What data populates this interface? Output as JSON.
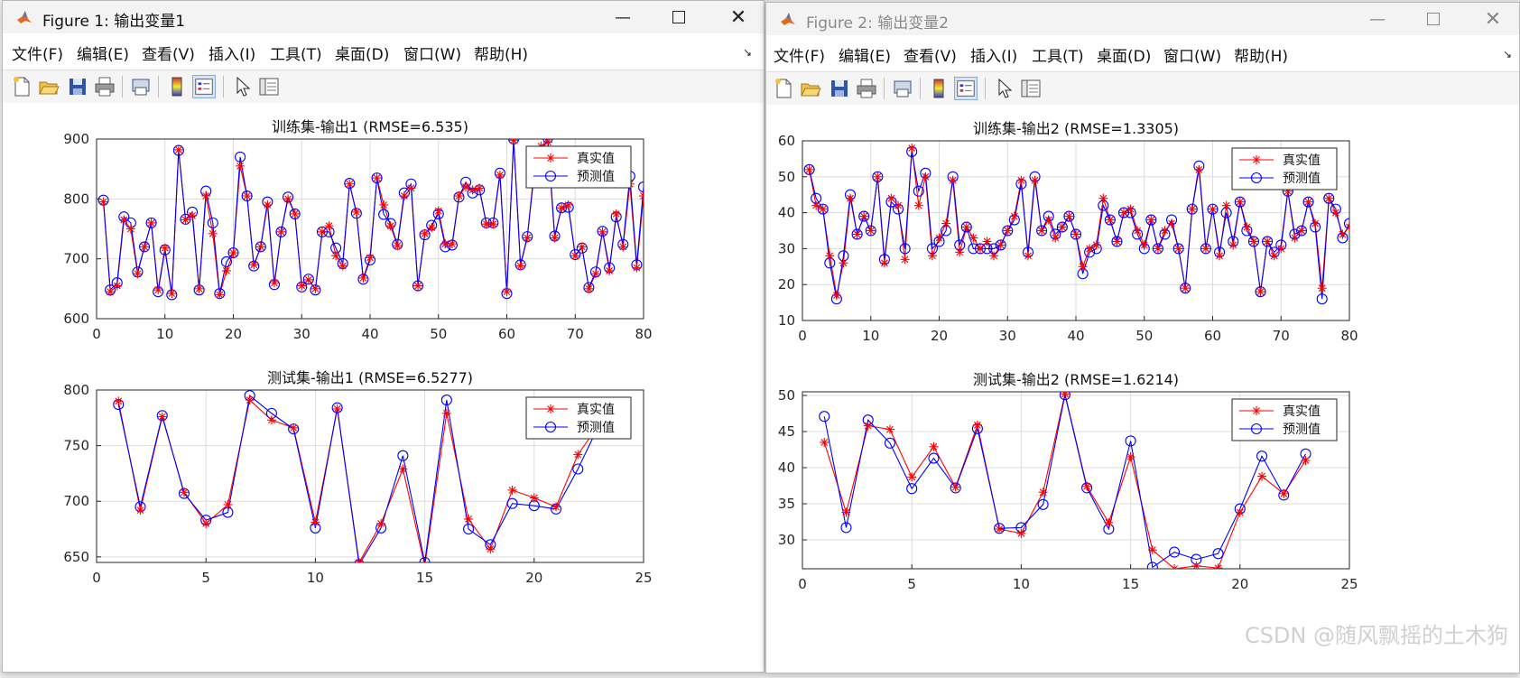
{
  "windows": [
    {
      "title": "Figure 1: 输出变量1",
      "menu": [
        "文件(F)",
        "编辑(E)",
        "查看(V)",
        "插入(I)",
        "工具(T)",
        "桌面(D)",
        "窗口(W)",
        "帮助(H)"
      ]
    },
    {
      "title": "Figure 2: 输出变量2",
      "menu": [
        "文件(F)",
        "编辑(E)",
        "查看(V)",
        "插入(I)",
        "工具(T)",
        "桌面(D)",
        "窗口(W)",
        "帮助(H)"
      ]
    }
  ],
  "legend": {
    "true_label": "真实值",
    "pred_label": "预测值"
  },
  "colors": {
    "true": "#ff0000",
    "pred": "#0000ff",
    "grid": "#dcdcdc"
  },
  "toolbar_icons": [
    "new-file-icon",
    "open-folder-icon",
    "save-icon",
    "print-icon",
    "print-preview-icon",
    "colorbar-icon",
    "legend-icon",
    "pointer-icon",
    "property-editor-icon"
  ],
  "watermark": "CSDN @随风飘摇的土木狗",
  "chart_data": [
    {
      "type": "line",
      "title": "训练集-输出1 (RMSE=6.535)",
      "xlim": [
        0,
        80
      ],
      "ylim": [
        600,
        900
      ],
      "xticks": [
        "0",
        "10",
        "20",
        "30",
        "40",
        "50",
        "60",
        "70",
        "80"
      ],
      "yticks": [
        "600",
        "700",
        "800",
        "900"
      ],
      "legend_position": "top-right",
      "grid": true,
      "x": [
        1,
        2,
        3,
        4,
        5,
        6,
        7,
        8,
        9,
        10,
        11,
        12,
        13,
        14,
        15,
        16,
        17,
        18,
        19,
        20,
        21,
        22,
        23,
        24,
        25,
        26,
        27,
        28,
        29,
        30,
        31,
        32,
        33,
        34,
        35,
        36,
        37,
        38,
        39,
        40,
        41,
        42,
        43,
        44,
        45,
        46,
        47,
        48,
        49,
        50,
        51,
        52,
        53,
        54,
        55,
        56,
        57,
        58,
        59,
        60,
        61,
        62,
        63,
        64,
        65,
        66,
        67,
        68,
        69,
        70,
        71,
        72,
        73,
        74,
        75,
        76,
        77,
        78,
        79,
        80
      ],
      "series": [
        {
          "name": "真实值",
          "values": [
            795,
            645,
            655,
            765,
            750,
            675,
            720,
            760,
            648,
            718,
            642,
            882,
            765,
            772,
            650,
            805,
            742,
            640,
            680,
            710,
            855,
            805,
            690,
            720,
            790,
            660,
            745,
            800,
            775,
            655,
            665,
            650,
            745,
            755,
            705,
            688,
            825,
            778,
            668,
            702,
            835,
            790,
            755,
            722,
            805,
            818,
            655,
            742,
            752,
            780,
            725,
            725,
            805,
            820,
            815,
            818,
            758,
            758,
            840,
            645,
            898,
            688,
            735,
            850,
            888,
            895,
            735,
            785,
            790,
            705,
            720,
            650,
            675,
            745,
            680,
            775,
            720,
            825,
            685,
            805
          ]
        },
        {
          "name": "预测值",
          "values": [
            798,
            648,
            660,
            770,
            760,
            678,
            720,
            760,
            645,
            715,
            640,
            881,
            766,
            778,
            648,
            813,
            760,
            642,
            695,
            710,
            870,
            805,
            688,
            720,
            795,
            657,
            745,
            803,
            775,
            653,
            666,
            648,
            745,
            745,
            718,
            692,
            826,
            776,
            666,
            698,
            835,
            774,
            759,
            724,
            810,
            825,
            655,
            740,
            756,
            775,
            720,
            723,
            803,
            828,
            810,
            815,
            760,
            760,
            843,
            642,
            900,
            690,
            737,
            842,
            878,
            902,
            738,
            785,
            786,
            707,
            718,
            652,
            678,
            746,
            685,
            770,
            724,
            838,
            690,
            820
          ]
        }
      ]
    },
    {
      "type": "line",
      "title": "测试集-输出1 (RMSE=6.5277)",
      "xlim": [
        0,
        25
      ],
      "ylim": [
        645,
        800
      ],
      "xticks": [
        "0",
        "5",
        "10",
        "15",
        "20",
        "25"
      ],
      "yticks": [
        "650",
        "700",
        "750",
        "800"
      ],
      "legend_position": "top-right",
      "grid": true,
      "x": [
        1,
        2,
        3,
        4,
        5,
        6,
        7,
        8,
        9,
        10,
        11,
        12,
        13,
        14,
        15,
        16,
        17,
        18,
        19,
        20,
        21,
        22,
        23
      ],
      "series": [
        {
          "name": "真实值",
          "values": [
            790,
            692,
            776,
            708,
            680,
            697,
            791,
            773,
            766,
            681,
            783,
            645,
            680,
            729,
            642,
            779,
            684,
            657,
            710,
            703,
            695,
            742,
            770
          ]
        },
        {
          "name": "预测值",
          "values": [
            787,
            695,
            777,
            707,
            683,
            690,
            795,
            779,
            765,
            676,
            784,
            643,
            676,
            741,
            645,
            791,
            675,
            661,
            698,
            696,
            693,
            729,
            770
          ]
        }
      ]
    },
    {
      "type": "line",
      "title": "训练集-输出2 (RMSE=1.3305)",
      "xlim": [
        0,
        80
      ],
      "ylim": [
        10,
        60
      ],
      "xticks": [
        "0",
        "10",
        "20",
        "30",
        "40",
        "50",
        "60",
        "70",
        "80"
      ],
      "yticks": [
        "10",
        "20",
        "30",
        "40",
        "50",
        "60"
      ],
      "legend_position": "top-right",
      "grid": true,
      "x": [
        1,
        2,
        3,
        4,
        5,
        6,
        7,
        8,
        9,
        10,
        11,
        12,
        13,
        14,
        15,
        16,
        17,
        18,
        19,
        20,
        21,
        22,
        23,
        24,
        25,
        26,
        27,
        28,
        29,
        30,
        31,
        32,
        33,
        34,
        35,
        36,
        37,
        38,
        39,
        40,
        41,
        42,
        43,
        44,
        45,
        46,
        47,
        48,
        49,
        50,
        51,
        52,
        53,
        54,
        55,
        56,
        57,
        58,
        59,
        60,
        61,
        62,
        63,
        64,
        65,
        66,
        67,
        68,
        69,
        70,
        71,
        72,
        73,
        74,
        75,
        76,
        77,
        78,
        79,
        80
      ],
      "series": [
        {
          "name": "真实值",
          "values": [
            52,
            42,
            41,
            28,
            17,
            26,
            44,
            34,
            39,
            35,
            50,
            26,
            44,
            42,
            27,
            58,
            42,
            50,
            28,
            33,
            37,
            49,
            29,
            36,
            33,
            30,
            32,
            28,
            31,
            35,
            39,
            49,
            28,
            49,
            35,
            38,
            33,
            36,
            39,
            34,
            25,
            30,
            31,
            44,
            38,
            32,
            40,
            41,
            35,
            31,
            38,
            30,
            35,
            37,
            30,
            19,
            41,
            52,
            30,
            41,
            28,
            42,
            31,
            43,
            36,
            32,
            18,
            32,
            28,
            30,
            46,
            33,
            35,
            43,
            37,
            19,
            44,
            40,
            34,
            36
          ]
        },
        {
          "name": "预测值",
          "values": [
            52,
            44,
            41,
            26,
            16,
            28,
            45,
            34,
            39,
            35,
            50,
            27,
            43,
            41,
            30,
            57,
            46,
            51,
            30,
            32,
            35,
            50,
            31,
            36,
            30,
            30,
            30,
            30,
            31,
            35,
            38,
            48,
            29,
            50,
            35,
            39,
            34,
            36,
            39,
            34,
            23,
            29,
            30,
            42,
            38,
            32,
            40,
            40,
            34,
            30,
            38,
            30,
            34,
            38,
            30,
            19,
            41,
            53,
            30,
            41,
            29,
            40,
            32,
            43,
            35,
            32,
            18,
            32,
            29,
            31,
            46,
            34,
            35,
            43,
            36,
            16,
            44,
            41,
            33,
            37
          ]
        }
      ]
    },
    {
      "type": "line",
      "title": "测试集-输出2 (RMSE=1.6214)",
      "xlim": [
        0,
        25
      ],
      "ylim": [
        26,
        50.5
      ],
      "xticks": [
        "0",
        "5",
        "10",
        "15",
        "20",
        "25"
      ],
      "yticks": [
        "30",
        "35",
        "40",
        "45",
        "50"
      ],
      "legend_position": "top-right",
      "grid": true,
      "x": [
        1,
        2,
        3,
        4,
        5,
        6,
        7,
        8,
        9,
        10,
        11,
        12,
        13,
        14,
        15,
        16,
        17,
        18,
        19,
        20,
        21,
        22,
        23
      ],
      "series": [
        {
          "name": "真实值",
          "values": [
            43.5,
            33.8,
            45.8,
            45.3,
            38.7,
            42.9,
            37.3,
            45.9,
            31.5,
            30.9,
            36.6,
            50.2,
            37.4,
            32.4,
            41.5,
            28.6,
            26.0,
            26.4,
            26.1,
            33.8,
            38.8,
            36.4,
            41.0
          ]
        },
        {
          "name": "预测值",
          "values": [
            47.1,
            31.7,
            46.6,
            43.4,
            37.1,
            41.3,
            37.2,
            45.4,
            31.6,
            31.7,
            34.9,
            50.1,
            37.2,
            31.5,
            43.7,
            26.2,
            28.3,
            27.3,
            28.1,
            34.3,
            41.6,
            36.2,
            41.9
          ]
        }
      ]
    }
  ]
}
